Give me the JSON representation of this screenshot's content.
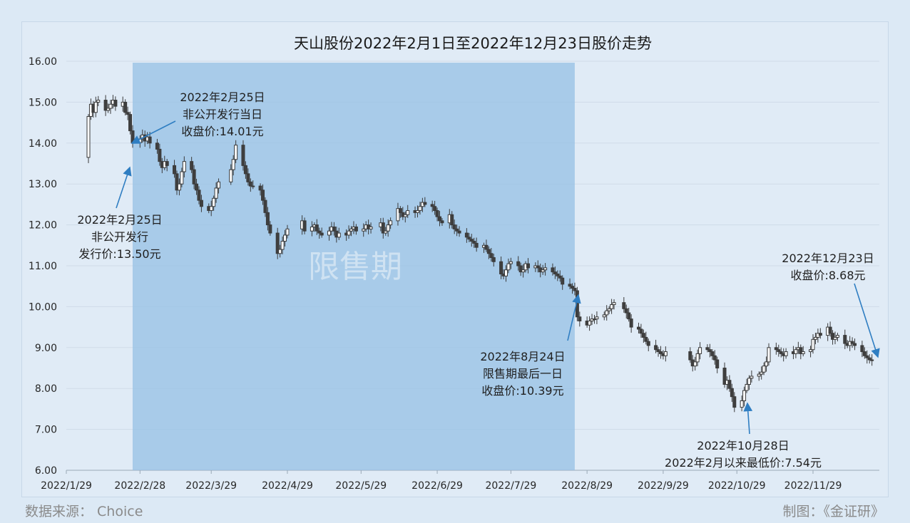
{
  "chart_data": {
    "type": "candlestick",
    "title": "天山股份2022年2月1日至2022年12月23日股价走势",
    "ylim": [
      6.0,
      16.0
    ],
    "y_ticks": [
      "6.00",
      "7.00",
      "8.00",
      "9.00",
      "10.00",
      "11.00",
      "12.00",
      "13.00",
      "14.00",
      "15.00",
      "16.00"
    ],
    "x_range": [
      "2022-01-29",
      "2022-12-26"
    ],
    "x_ticks": [
      "2022/1/29",
      "2022/2/28",
      "2022/3/29",
      "2022/4/29",
      "2022/5/29",
      "2022/6/29",
      "2022/7/29",
      "2022/8/29",
      "2022/9/29",
      "2022/10/29",
      "2022/11/29"
    ],
    "grid": true,
    "shaded_region": {
      "label": "限售期",
      "start": "2022-02-25",
      "end": "2022-08-24"
    },
    "close_series": [
      [
        "2022-02-07",
        14.65
      ],
      [
        "2022-02-08",
        14.95
      ],
      [
        "2022-02-09",
        14.75
      ],
      [
        "2022-02-10",
        15.0
      ],
      [
        "2022-02-11",
        15.05
      ],
      [
        "2022-02-14",
        14.8
      ],
      [
        "2022-02-15",
        14.85
      ],
      [
        "2022-02-16",
        14.95
      ],
      [
        "2022-02-17",
        15.05
      ],
      [
        "2022-02-18",
        14.9
      ],
      [
        "2022-02-21",
        15.0
      ],
      [
        "2022-02-22",
        14.75
      ],
      [
        "2022-02-23",
        14.7
      ],
      [
        "2022-02-24",
        14.3
      ],
      [
        "2022-02-25",
        14.01
      ],
      [
        "2022-02-28",
        14.1
      ],
      [
        "2022-03-01",
        14.2
      ],
      [
        "2022-03-02",
        14.05
      ],
      [
        "2022-03-03",
        14.15
      ],
      [
        "2022-03-04",
        14.0
      ],
      [
        "2022-03-07",
        13.85
      ],
      [
        "2022-03-08",
        13.55
      ],
      [
        "2022-03-09",
        13.4
      ],
      [
        "2022-03-10",
        13.55
      ],
      [
        "2022-03-11",
        13.45
      ],
      [
        "2022-03-14",
        13.25
      ],
      [
        "2022-03-15",
        12.85
      ],
      [
        "2022-03-16",
        13.0
      ],
      [
        "2022-03-17",
        13.3
      ],
      [
        "2022-03-18",
        13.55
      ],
      [
        "2022-03-21",
        13.35
      ],
      [
        "2022-03-22",
        13.0
      ],
      [
        "2022-03-23",
        12.85
      ],
      [
        "2022-03-24",
        12.6
      ],
      [
        "2022-03-25",
        12.45
      ],
      [
        "2022-03-28",
        12.35
      ],
      [
        "2022-03-29",
        12.45
      ],
      [
        "2022-03-30",
        12.65
      ],
      [
        "2022-03-31",
        12.9
      ],
      [
        "2022-04-01",
        13.05
      ],
      [
        "2022-04-06",
        13.35
      ],
      [
        "2022-04-07",
        13.6
      ],
      [
        "2022-04-08",
        13.95
      ],
      [
        "2022-04-11",
        13.45
      ],
      [
        "2022-04-12",
        13.25
      ],
      [
        "2022-04-13",
        13.05
      ],
      [
        "2022-04-14",
        12.95
      ],
      [
        "2022-04-15",
        12.95
      ],
      [
        "2022-04-18",
        12.85
      ],
      [
        "2022-04-19",
        12.6
      ],
      [
        "2022-04-20",
        12.3
      ],
      [
        "2022-04-21",
        12.0
      ],
      [
        "2022-04-22",
        11.8
      ],
      [
        "2022-04-25",
        11.3
      ],
      [
        "2022-04-26",
        11.4
      ],
      [
        "2022-04-27",
        11.6
      ],
      [
        "2022-04-28",
        11.75
      ],
      [
        "2022-04-29",
        11.9
      ],
      [
        "2022-05-05",
        12.1
      ],
      [
        "2022-05-06",
        11.85
      ],
      [
        "2022-05-09",
        11.95
      ],
      [
        "2022-05-10",
        12.0
      ],
      [
        "2022-05-11",
        11.85
      ],
      [
        "2022-05-12",
        11.8
      ],
      [
        "2022-05-13",
        11.75
      ],
      [
        "2022-05-16",
        11.85
      ],
      [
        "2022-05-17",
        11.95
      ],
      [
        "2022-05-18",
        11.85
      ],
      [
        "2022-05-19",
        11.7
      ],
      [
        "2022-05-20",
        11.8
      ],
      [
        "2022-05-23",
        11.75
      ],
      [
        "2022-05-24",
        11.85
      ],
      [
        "2022-05-25",
        11.9
      ],
      [
        "2022-05-26",
        11.95
      ],
      [
        "2022-05-27",
        11.85
      ],
      [
        "2022-05-30",
        11.9
      ],
      [
        "2022-05-31",
        12.0
      ],
      [
        "2022-06-01",
        11.9
      ],
      [
        "2022-06-02",
        11.95
      ],
      [
        "2022-06-06",
        12.05
      ],
      [
        "2022-06-07",
        11.8
      ],
      [
        "2022-06-08",
        11.85
      ],
      [
        "2022-06-09",
        12.0
      ],
      [
        "2022-06-10",
        12.1
      ],
      [
        "2022-06-13",
        12.4
      ],
      [
        "2022-06-14",
        12.3
      ],
      [
        "2022-06-15",
        12.2
      ],
      [
        "2022-06-16",
        12.25
      ],
      [
        "2022-06-17",
        12.35
      ],
      [
        "2022-06-20",
        12.3
      ],
      [
        "2022-06-21",
        12.35
      ],
      [
        "2022-06-22",
        12.45
      ],
      [
        "2022-06-23",
        12.55
      ],
      [
        "2022-06-24",
        12.5
      ],
      [
        "2022-06-27",
        12.45
      ],
      [
        "2022-06-28",
        12.35
      ],
      [
        "2022-06-29",
        12.2
      ],
      [
        "2022-06-30",
        12.1
      ],
      [
        "2022-07-01",
        12.05
      ],
      [
        "2022-07-04",
        12.25
      ],
      [
        "2022-07-05",
        12.0
      ],
      [
        "2022-07-06",
        11.9
      ],
      [
        "2022-07-07",
        11.85
      ],
      [
        "2022-07-08",
        11.8
      ],
      [
        "2022-07-11",
        11.7
      ],
      [
        "2022-07-12",
        11.65
      ],
      [
        "2022-07-13",
        11.6
      ],
      [
        "2022-07-14",
        11.55
      ],
      [
        "2022-07-15",
        11.45
      ],
      [
        "2022-07-18",
        11.5
      ],
      [
        "2022-07-19",
        11.4
      ],
      [
        "2022-07-20",
        11.3
      ],
      [
        "2022-07-21",
        11.2
      ],
      [
        "2022-07-22",
        11.1
      ],
      [
        "2022-07-25",
        10.8
      ],
      [
        "2022-07-26",
        10.75
      ],
      [
        "2022-07-27",
        10.9
      ],
      [
        "2022-07-28",
        11.05
      ],
      [
        "2022-07-29",
        11.1
      ],
      [
        "2022-08-01",
        11.0
      ],
      [
        "2022-08-02",
        10.85
      ],
      [
        "2022-08-03",
        10.9
      ],
      [
        "2022-08-04",
        11.05
      ],
      [
        "2022-08-05",
        10.95
      ],
      [
        "2022-08-08",
        11.0
      ],
      [
        "2022-08-09",
        10.95
      ],
      [
        "2022-08-10",
        10.85
      ],
      [
        "2022-08-11",
        10.9
      ],
      [
        "2022-08-12",
        10.95
      ],
      [
        "2022-08-15",
        10.85
      ],
      [
        "2022-08-16",
        10.8
      ],
      [
        "2022-08-17",
        10.75
      ],
      [
        "2022-08-18",
        10.7
      ],
      [
        "2022-08-19",
        10.55
      ],
      [
        "2022-08-22",
        10.5
      ],
      [
        "2022-08-23",
        10.45
      ],
      [
        "2022-08-24",
        10.39
      ],
      [
        "2022-08-25",
        9.75
      ],
      [
        "2022-08-26",
        9.65
      ],
      [
        "2022-08-29",
        9.55
      ],
      [
        "2022-08-30",
        9.65
      ],
      [
        "2022-08-31",
        9.7
      ],
      [
        "2022-09-01",
        9.7
      ],
      [
        "2022-09-02",
        9.75
      ],
      [
        "2022-09-05",
        9.8
      ],
      [
        "2022-09-06",
        9.9
      ],
      [
        "2022-09-07",
        9.95
      ],
      [
        "2022-09-08",
        10.05
      ],
      [
        "2022-09-09",
        10.1
      ],
      [
        "2022-09-13",
        9.95
      ],
      [
        "2022-09-14",
        9.85
      ],
      [
        "2022-09-15",
        9.7
      ],
      [
        "2022-09-16",
        9.5
      ],
      [
        "2022-09-19",
        9.45
      ],
      [
        "2022-09-20",
        9.35
      ],
      [
        "2022-09-21",
        9.25
      ],
      [
        "2022-09-22",
        9.15
      ],
      [
        "2022-09-23",
        9.05
      ],
      [
        "2022-09-26",
        8.95
      ],
      [
        "2022-09-27",
        8.9
      ],
      [
        "2022-09-28",
        8.85
      ],
      [
        "2022-09-29",
        8.8
      ],
      [
        "2022-09-30",
        8.9
      ],
      [
        "2022-10-10",
        8.7
      ],
      [
        "2022-10-11",
        8.55
      ],
      [
        "2022-10-12",
        8.65
      ],
      [
        "2022-10-13",
        8.85
      ],
      [
        "2022-10-14",
        9.0
      ],
      [
        "2022-10-17",
        8.95
      ],
      [
        "2022-10-18",
        8.9
      ],
      [
        "2022-10-19",
        8.8
      ],
      [
        "2022-10-20",
        8.7
      ],
      [
        "2022-10-21",
        8.5
      ],
      [
        "2022-10-24",
        8.1
      ],
      [
        "2022-10-25",
        8.2
      ],
      [
        "2022-10-26",
        8.0
      ],
      [
        "2022-10-27",
        7.8
      ],
      [
        "2022-10-28",
        7.54
      ],
      [
        "2022-10-31",
        7.7
      ],
      [
        "2022-11-01",
        7.95
      ],
      [
        "2022-11-02",
        8.1
      ],
      [
        "2022-11-03",
        8.25
      ],
      [
        "2022-11-04",
        8.3
      ],
      [
        "2022-11-07",
        8.35
      ],
      [
        "2022-11-08",
        8.4
      ],
      [
        "2022-11-09",
        8.55
      ],
      [
        "2022-11-10",
        8.65
      ],
      [
        "2022-11-11",
        9.0
      ],
      [
        "2022-11-14",
        8.95
      ],
      [
        "2022-11-15",
        8.9
      ],
      [
        "2022-11-16",
        8.85
      ],
      [
        "2022-11-17",
        8.8
      ],
      [
        "2022-11-18",
        8.9
      ],
      [
        "2022-11-21",
        8.85
      ],
      [
        "2022-11-22",
        8.95
      ],
      [
        "2022-11-23",
        9.0
      ],
      [
        "2022-11-24",
        8.85
      ],
      [
        "2022-11-25",
        8.9
      ],
      [
        "2022-11-28",
        8.95
      ],
      [
        "2022-11-29",
        9.2
      ],
      [
        "2022-11-30",
        9.25
      ],
      [
        "2022-12-01",
        9.35
      ],
      [
        "2022-12-02",
        9.3
      ],
      [
        "2022-12-05",
        9.5
      ],
      [
        "2022-12-06",
        9.35
      ],
      [
        "2022-12-07",
        9.2
      ],
      [
        "2022-12-08",
        9.25
      ],
      [
        "2022-12-09",
        9.3
      ],
      [
        "2022-12-12",
        9.1
      ],
      [
        "2022-12-13",
        9.05
      ],
      [
        "2022-12-14",
        9.15
      ],
      [
        "2022-12-15",
        9.1
      ],
      [
        "2022-12-16",
        9.05
      ],
      [
        "2022-12-19",
        8.9
      ],
      [
        "2022-12-20",
        8.8
      ],
      [
        "2022-12-21",
        8.75
      ],
      [
        "2022-12-22",
        8.7
      ],
      [
        "2022-12-23",
        8.68
      ]
    ],
    "annotations": [
      {
        "lines": [
          "2022年2月25日",
          "非公开发行当日",
          "收盘价:14.01元"
        ],
        "target": [
          "2022-02-25",
          14.01
        ]
      },
      {
        "lines": [
          "2022年2月25日",
          "非公开发行",
          "发行价:13.50元"
        ],
        "target": [
          "2022-02-25",
          13.5
        ]
      },
      {
        "lines": [
          "2022年8月24日",
          "限售期最后一日",
          "收盘价:10.39元"
        ],
        "target": [
          "2022-08-24",
          10.39
        ]
      },
      {
        "lines": [
          "2022年10月28日",
          "2022年2月以来最低价:7.54元"
        ],
        "target": [
          "2022-10-28",
          7.54
        ]
      },
      {
        "lines": [
          "2022年12月23日",
          "收盘价:8.68元"
        ],
        "target": [
          "2022-12-23",
          8.68
        ]
      }
    ]
  },
  "footer": {
    "source": "数据来源： Choice",
    "credit": "制图：《金证研》"
  }
}
